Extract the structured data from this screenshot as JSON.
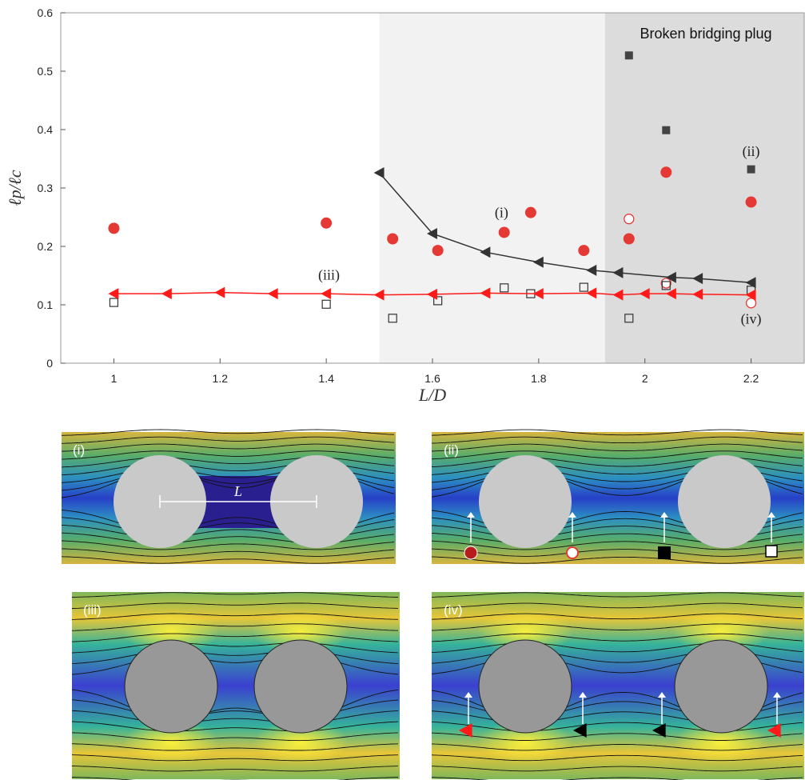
{
  "chart_data": {
    "type": "scatter",
    "xlabel": "L/D",
    "ylabel": "ℓp/ℓc",
    "xlim": [
      0.9,
      2.3
    ],
    "ylim": [
      0,
      0.6
    ],
    "xticks": [
      "1",
      "1.2",
      "1.4",
      "1.6",
      "1.8",
      "2",
      "2.2"
    ],
    "yticks": [
      "0",
      "0.1",
      "0.2",
      "0.3",
      "0.4",
      "0.5",
      "0.6"
    ],
    "grid": false,
    "shaded_regions": [
      {
        "x": [
          1.5,
          1.925
        ],
        "color": "#f2f2f2"
      },
      {
        "x": [
          1.925,
          2.3
        ],
        "color": "#dcdcdc",
        "label": "Broken bridging plug"
      }
    ],
    "series": [
      {
        "marker": "filled-circle",
        "color": "#e53935",
        "points": [
          [
            1.0,
            0.231
          ],
          [
            1.4,
            0.24
          ],
          [
            1.525,
            0.213
          ],
          [
            1.61,
            0.193
          ],
          [
            1.735,
            0.224
          ],
          [
            1.785,
            0.258
          ],
          [
            1.885,
            0.193
          ],
          [
            1.97,
            0.213
          ],
          [
            2.04,
            0.327
          ],
          [
            2.2,
            0.276
          ]
        ]
      },
      {
        "marker": "open-circle",
        "color": "#e53935",
        "points": [
          [
            1.97,
            0.247
          ],
          [
            2.04,
            0.137
          ],
          [
            2.2,
            0.103
          ]
        ]
      },
      {
        "marker": "filled-square",
        "color": "#444444",
        "points": [
          [
            1.97,
            0.527
          ],
          [
            2.04,
            0.399
          ],
          [
            2.2,
            0.332
          ]
        ]
      },
      {
        "marker": "open-square",
        "color": "#333333",
        "points": [
          [
            1.0,
            0.104
          ],
          [
            1.4,
            0.101
          ],
          [
            1.525,
            0.077
          ],
          [
            1.61,
            0.107
          ],
          [
            1.735,
            0.129
          ],
          [
            1.785,
            0.119
          ],
          [
            1.885,
            0.13
          ],
          [
            1.97,
            0.077
          ],
          [
            2.04,
            0.133
          ],
          [
            2.2,
            0.125
          ]
        ]
      },
      {
        "marker": "left-triangle",
        "color": "#333333",
        "line": true,
        "points": [
          [
            1.5,
            0.326
          ],
          [
            1.6,
            0.222
          ],
          [
            1.7,
            0.19
          ],
          [
            1.8,
            0.173
          ],
          [
            1.9,
            0.159
          ],
          [
            1.95,
            0.155
          ],
          [
            2.05,
            0.147
          ],
          [
            2.1,
            0.145
          ],
          [
            2.2,
            0.138
          ]
        ]
      },
      {
        "marker": "left-triangle",
        "color": "#ff1a1a",
        "line": true,
        "points": [
          [
            1.0,
            0.119
          ],
          [
            1.1,
            0.119
          ],
          [
            1.2,
            0.121
          ],
          [
            1.3,
            0.119
          ],
          [
            1.4,
            0.119
          ],
          [
            1.5,
            0.117
          ],
          [
            1.6,
            0.118
          ],
          [
            1.7,
            0.12
          ],
          [
            1.8,
            0.119
          ],
          [
            1.9,
            0.12
          ],
          [
            1.95,
            0.117
          ],
          [
            2.0,
            0.119
          ],
          [
            2.05,
            0.119
          ],
          [
            2.1,
            0.118
          ],
          [
            2.2,
            0.117
          ]
        ]
      }
    ],
    "annotations": [
      {
        "text": "(i)",
        "x": 1.73,
        "y": 0.25
      },
      {
        "text": "(ii)",
        "x": 2.2,
        "y": 0.355
      },
      {
        "text": "(iii)",
        "x": 1.405,
        "y": 0.143
      },
      {
        "text": "(iv)",
        "x": 2.2,
        "y": 0.068
      }
    ]
  },
  "region_label": "Broken bridging plug",
  "panels": [
    {
      "label": "(i)",
      "dimension_label": "L"
    },
    {
      "label": "(ii)"
    },
    {
      "label": "(iii)"
    },
    {
      "label": "(iv)"
    }
  ],
  "colors": {
    "red": "#e53935",
    "dark": "#333333",
    "bright_red": "#ff1a1a"
  }
}
